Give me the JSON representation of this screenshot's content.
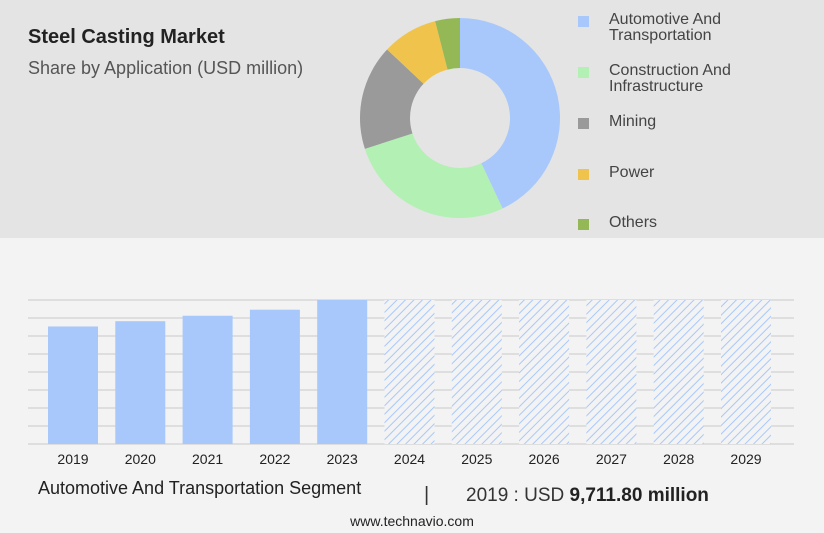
{
  "header": {
    "title": "Steel Casting Market",
    "subtitle": "Share by Application (USD million)"
  },
  "chart_data": [
    {
      "type": "pie",
      "variant": "donut",
      "labels": [
        "Automotive And Transportation",
        "Construction And Infrastructure",
        "Mining",
        "Power",
        "Others"
      ],
      "values": [
        43,
        27,
        17,
        9,
        4
      ],
      "colors": [
        "#a8c8fb",
        "#b3f0b3",
        "#9a9a9a",
        "#f0c44c",
        "#93b855"
      ],
      "legend_position": "right"
    },
    {
      "type": "bar",
      "categories": [
        "2019",
        "2020",
        "2021",
        "2022",
        "2023",
        "2024",
        "2025",
        "2026",
        "2027",
        "2028",
        "2029"
      ],
      "values": [
        9711.8,
        10150,
        10600,
        11100,
        11900,
        null,
        null,
        null,
        null,
        null,
        null
      ],
      "forecast_categories": [
        "2024",
        "2025",
        "2026",
        "2027",
        "2028",
        "2029"
      ],
      "color": "#a8c8fb",
      "grid": true
    }
  ],
  "footer": {
    "segment_label": "Automotive And Transportation Segment",
    "separator": "|",
    "value_prefix": "2019 : USD ",
    "value_bold": "9,711.80 million",
    "website": "www.technavio.com"
  }
}
